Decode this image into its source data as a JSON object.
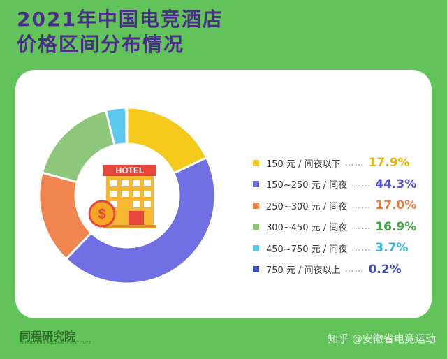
{
  "title": {
    "line1": "2021年中国电竞酒店",
    "line2": "价格区间分布情况"
  },
  "chart_data": {
    "type": "pie",
    "donut": true,
    "title": "2021年中国电竞酒店价格区间分布情况",
    "slices": [
      {
        "label": "150 元 / 间夜以下",
        "value": 17.9,
        "display": "17.9%",
        "color": "#f5c81c"
      },
      {
        "label": "150~250 元 / 间夜",
        "value": 44.3,
        "display": "44.3%",
        "color": "#6f6fe3"
      },
      {
        "label": "250~300 元 / 间夜",
        "value": 17.0,
        "display": "17.0%",
        "color": "#f1844f"
      },
      {
        "label": "300~450 元 / 间夜",
        "value": 16.9,
        "display": "16.9%",
        "color": "#8dc87a"
      },
      {
        "label": "450~750 元 / 间夜",
        "value": 3.7,
        "display": "3.7%",
        "color": "#5cc8ee"
      },
      {
        "label": "750 元 / 间夜以上",
        "value": 0.2,
        "display": "0.2%",
        "color": "#3b4fc4"
      }
    ],
    "legend_position": "right",
    "value_colors": [
      "#e6b800",
      "#5252d6",
      "#ee7a3e",
      "#3aa83a",
      "#2bb2e6",
      "#3b4fc4"
    ]
  },
  "center_icon": {
    "name": "hotel-icon",
    "sign_text": "HOTEL"
  },
  "legend_dots": "……",
  "brand": {
    "name": "同程研究院",
    "sub": "TONGCHENG RESEARCH INSTITUTE"
  },
  "watermark": "知乎 @安徽省电竞运动"
}
